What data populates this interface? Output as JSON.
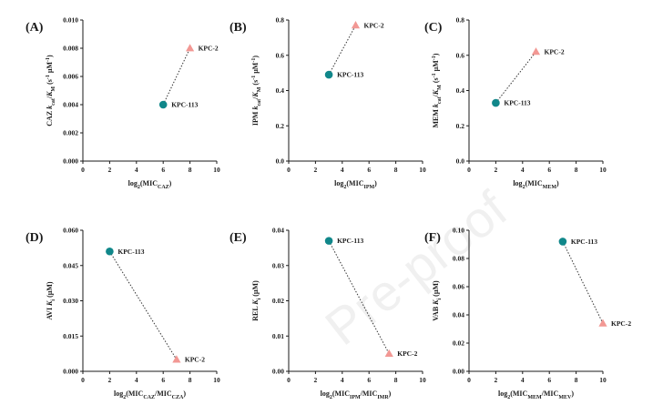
{
  "watermark_text": "Pre-proof",
  "colors": {
    "kpc113": "#10878a",
    "kpc2": "#f29894",
    "axis": "#1a1a1a",
    "line": "#333333"
  },
  "chart_data": [
    {
      "panel_label": "(A)",
      "type": "scatter",
      "ylabel_parts": [
        "CAZ ",
        "k",
        "cat",
        "/",
        "K",
        "M",
        " (s",
        "-1",
        " µM",
        "-1",
        ")"
      ],
      "xlabel_parts": [
        "log",
        "2",
        "(MIC",
        "CAZ",
        ")"
      ],
      "xlim": [
        0,
        10
      ],
      "ylim": [
        0,
        0.01
      ],
      "xticks": [
        "0",
        "2",
        "4",
        "6",
        "8",
        "10"
      ],
      "yticks": [
        "0.000",
        "0.002",
        "0.004",
        "0.006",
        "0.008",
        "0.010"
      ],
      "points": [
        {
          "name": "KPC-113",
          "x": 6,
          "y": 0.004,
          "marker": "circle"
        },
        {
          "name": "KPC-2",
          "x": 8,
          "y": 0.008,
          "marker": "triangle"
        }
      ]
    },
    {
      "panel_label": "(B)",
      "type": "scatter",
      "ylabel_parts": [
        "IPM ",
        "k",
        "cat",
        "/",
        "K",
        "M",
        " (s",
        "-1",
        " µM",
        "-1",
        ")"
      ],
      "xlabel_parts": [
        "log",
        "2",
        "(MIC",
        "IPM",
        ")"
      ],
      "xlim": [
        0,
        10
      ],
      "ylim": [
        0,
        0.8
      ],
      "xticks": [
        "0",
        "2",
        "4",
        "6",
        "8",
        "10"
      ],
      "yticks": [
        "0.0",
        "0.2",
        "0.4",
        "0.6",
        "0.8"
      ],
      "points": [
        {
          "name": "KPC-113",
          "x": 3,
          "y": 0.49,
          "marker": "circle"
        },
        {
          "name": "KPC-2",
          "x": 5,
          "y": 0.77,
          "marker": "triangle"
        }
      ]
    },
    {
      "panel_label": "(C)",
      "type": "scatter",
      "ylabel_parts": [
        "MEM ",
        "k",
        "cat",
        "/",
        "K",
        "M",
        " (s",
        "-1",
        " µM",
        "-1",
        ")"
      ],
      "xlabel_parts": [
        "log",
        "2",
        "(MIC",
        "MEM",
        ")"
      ],
      "xlim": [
        0,
        10
      ],
      "ylim": [
        0,
        0.8
      ],
      "xticks": [
        "0",
        "2",
        "4",
        "6",
        "8",
        "10"
      ],
      "yticks": [
        "0.0",
        "0.2",
        "0.4",
        "0.6",
        "0.8"
      ],
      "points": [
        {
          "name": "KPC-113",
          "x": 2,
          "y": 0.33,
          "marker": "circle"
        },
        {
          "name": "KPC-2",
          "x": 5,
          "y": 0.62,
          "marker": "triangle"
        }
      ]
    },
    {
      "panel_label": "(D)",
      "type": "scatter",
      "ylabel_parts": [
        "AVI ",
        "K",
        "i",
        " (µM)"
      ],
      "xlabel_parts": [
        "log",
        "2",
        "(MIC",
        "CAZ",
        "/MIC",
        "CZA",
        ")"
      ],
      "xlim": [
        0,
        10
      ],
      "ylim": [
        0,
        0.06
      ],
      "xticks": [
        "0",
        "2",
        "4",
        "6",
        "8",
        "10"
      ],
      "yticks": [
        "0.000",
        "0.015",
        "0.030",
        "0.045",
        "0.060"
      ],
      "points": [
        {
          "name": "KPC-113",
          "x": 2,
          "y": 0.051,
          "marker": "circle"
        },
        {
          "name": "KPC-2",
          "x": 7,
          "y": 0.005,
          "marker": "triangle"
        }
      ]
    },
    {
      "panel_label": "(E)",
      "type": "scatter",
      "ylabel_parts": [
        "REL ",
        "K",
        "i",
        " (µM)"
      ],
      "xlabel_parts": [
        "log",
        "2",
        "(MIC",
        "IPM",
        "/MIC",
        "IMR",
        ")"
      ],
      "xlim": [
        0,
        10
      ],
      "ylim": [
        0,
        0.04
      ],
      "xticks": [
        "0",
        "2",
        "4",
        "6",
        "8",
        "10"
      ],
      "yticks": [
        "0.00",
        "0.01",
        "0.02",
        "0.03",
        "0.04"
      ],
      "points": [
        {
          "name": "KPC-113",
          "x": 3,
          "y": 0.037,
          "marker": "circle"
        },
        {
          "name": "KPC-2",
          "x": 7.5,
          "y": 0.005,
          "marker": "triangle"
        }
      ]
    },
    {
      "panel_label": "(F)",
      "type": "scatter",
      "ylabel_parts": [
        "VAB ",
        "K",
        "i",
        " (µM)"
      ],
      "xlabel_parts": [
        "log",
        "2",
        "(MIC",
        "MEM",
        "/MIC",
        "MEV",
        ")"
      ],
      "xlim": [
        0,
        10
      ],
      "ylim": [
        0,
        0.1
      ],
      "xticks": [
        "0",
        "2",
        "4",
        "6",
        "8",
        "10"
      ],
      "yticks": [
        "0.00",
        "0.02",
        "0.04",
        "0.06",
        "0.08",
        "0.10"
      ],
      "points": [
        {
          "name": "KPC-113",
          "x": 7,
          "y": 0.092,
          "marker": "circle"
        },
        {
          "name": "KPC-2",
          "x": 10,
          "y": 0.034,
          "marker": "triangle"
        }
      ]
    }
  ]
}
